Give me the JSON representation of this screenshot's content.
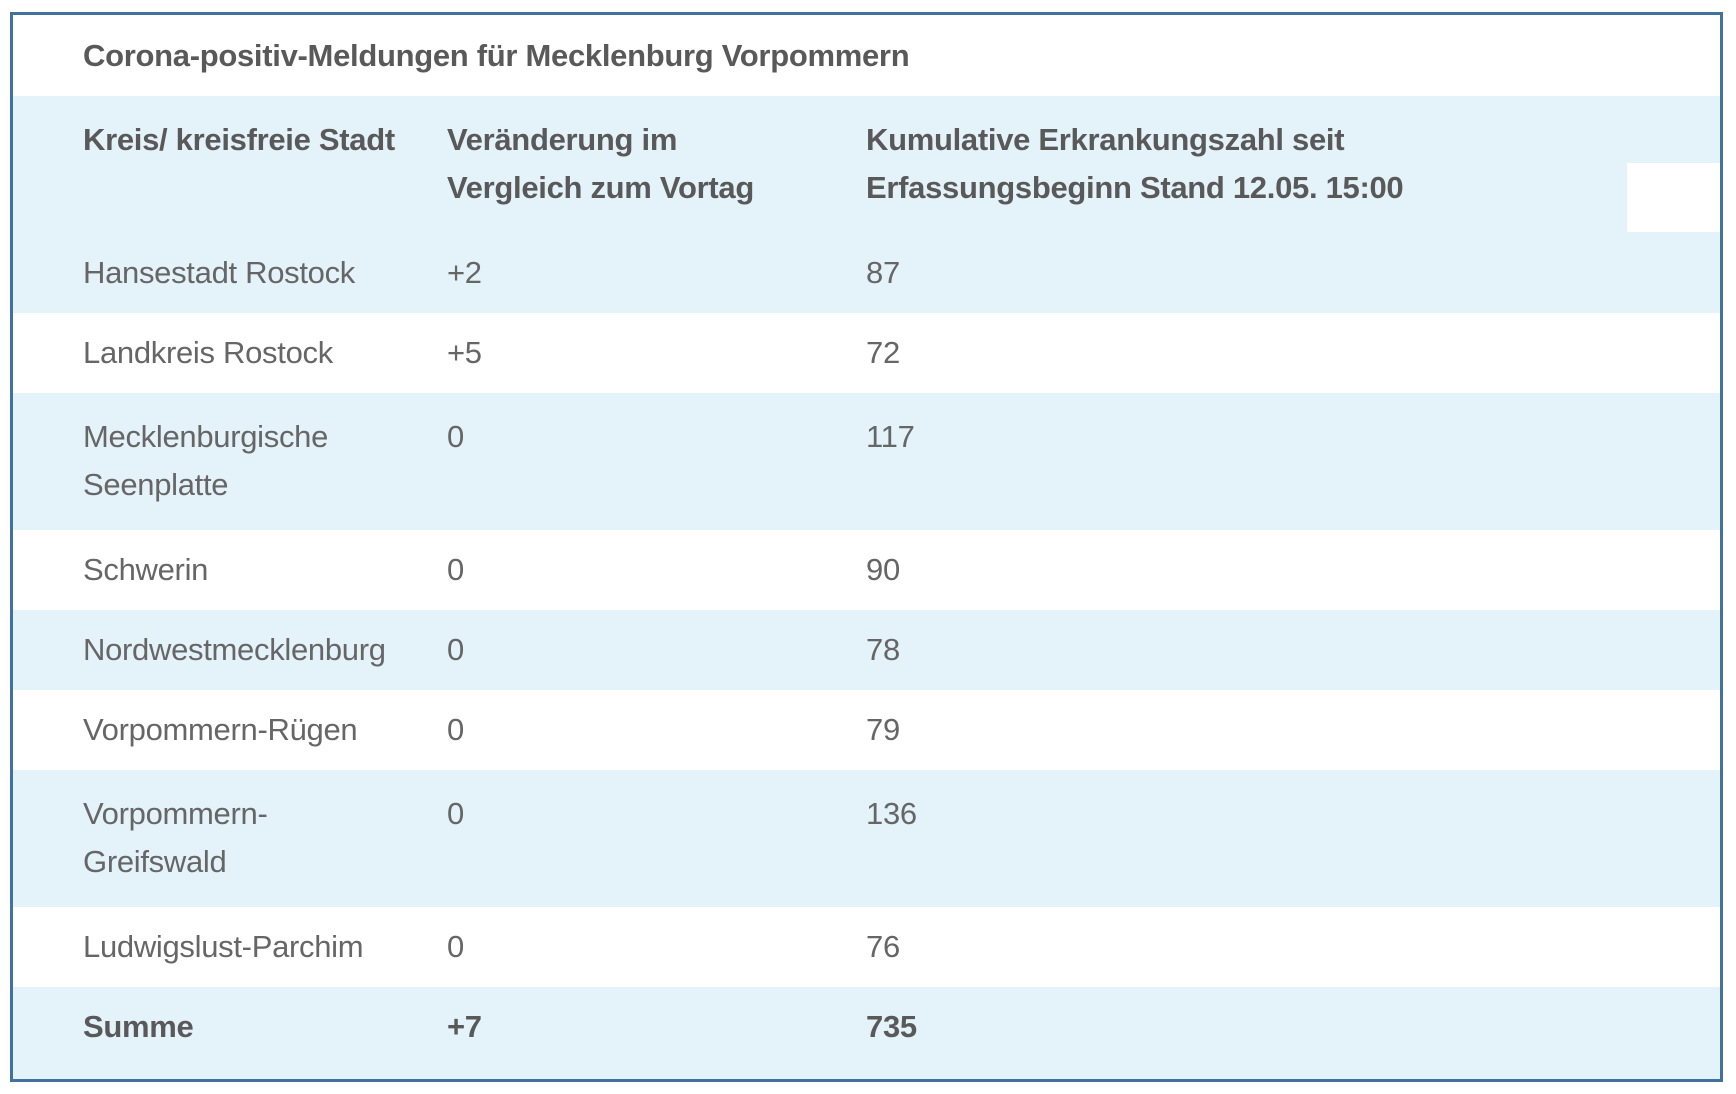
{
  "table": {
    "title": "Corona-positiv-Meldungen für Mecklenburg Vorpommern",
    "columns": [
      {
        "label": "Kreis/ kreisfreie Stadt"
      },
      {
        "label": "Veränderung im\nVergleich zum Vortag"
      },
      {
        "label": "Kumulative Erkrankungszahl seit\nErfassungsbeginn Stand 12.05. 15:00"
      }
    ],
    "rows": [
      {
        "kreis": "Hansestadt Rostock",
        "veraenderung": "+2",
        "kumulativ": "87",
        "shaded": true,
        "tall": false,
        "bold": false
      },
      {
        "kreis": "Landkreis Rostock",
        "veraenderung": "+5",
        "kumulativ": "72",
        "shaded": false,
        "tall": false,
        "bold": false
      },
      {
        "kreis": "Mecklenburgische\nSeenplatte",
        "veraenderung": "0",
        "kumulativ": "117",
        "shaded": true,
        "tall": true,
        "bold": false
      },
      {
        "kreis": "Schwerin",
        "veraenderung": "0",
        "kumulativ": "90",
        "shaded": false,
        "tall": false,
        "bold": false
      },
      {
        "kreis": "Nordwestmecklenburg",
        "veraenderung": "0",
        "kumulativ": "78",
        "shaded": true,
        "tall": false,
        "bold": false
      },
      {
        "kreis": "Vorpommern-Rügen",
        "veraenderung": "0",
        "kumulativ": "79",
        "shaded": false,
        "tall": false,
        "bold": false
      },
      {
        "kreis": "Vorpommern-\nGreifswald",
        "veraenderung": "0",
        "kumulativ": "136",
        "shaded": true,
        "tall": true,
        "bold": false
      },
      {
        "kreis": "Ludwigslust-Parchim",
        "veraenderung": "0",
        "kumulativ": "76",
        "shaded": false,
        "tall": false,
        "bold": false
      },
      {
        "kreis": "Summe",
        "veraenderung": "+7",
        "kumulativ": "735",
        "shaded": true,
        "tall": false,
        "bold": true
      }
    ],
    "colors": {
      "border": "#41719c",
      "stripe": "#e4f2fa",
      "text": "#666666",
      "bold_text": "#595959",
      "overlay": "#ffffff",
      "page_background": "#ffffff"
    }
  }
}
